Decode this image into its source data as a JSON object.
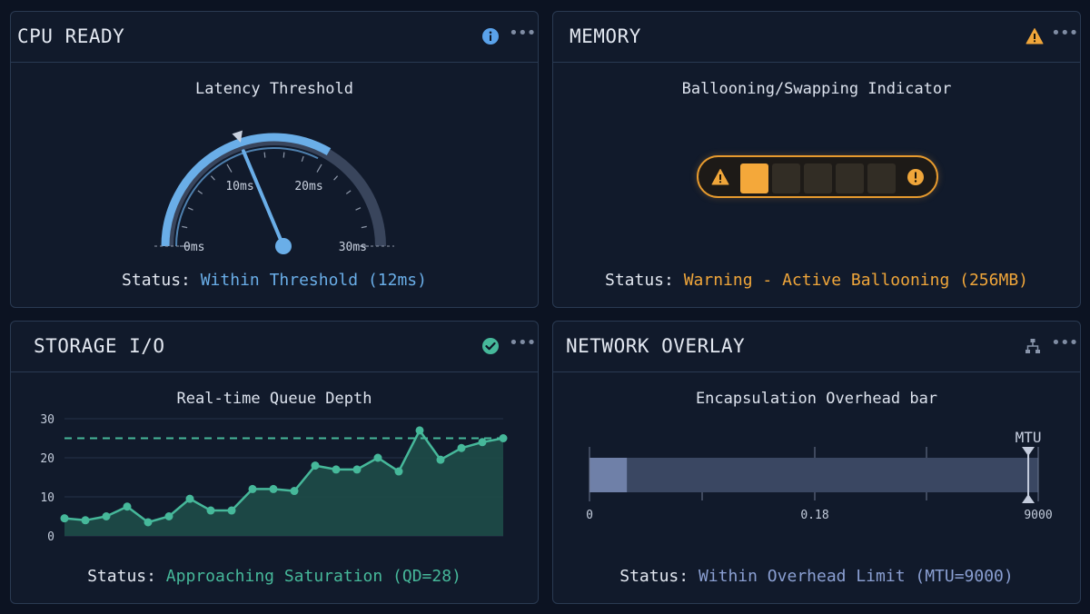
{
  "panels": {
    "cpu": {
      "title": "CPU READY",
      "icon": "info-icon",
      "subtitle": "Latency Threshold",
      "gauge": {
        "min": 0,
        "max": 30,
        "unit": "ms",
        "value": 12,
        "marker": 12,
        "warn_start": 20,
        "tick_labels": [
          "0ms",
          "10ms",
          "20ms",
          "30ms"
        ]
      },
      "status_label": "Status:",
      "status_value": "Within Threshold (12ms)",
      "accent": "#6aaee8"
    },
    "memory": {
      "title": "MEMORY",
      "icon": "warning-icon",
      "subtitle": "Ballooning/Swapping Indicator",
      "indicator": {
        "segments": 5,
        "active": 1,
        "left_icon": "warning-icon",
        "right_icon": "alert-circle-icon"
      },
      "status_label": "Status:",
      "status_value": "Warning - Active Ballooning (256MB)",
      "accent": "#f0a63a"
    },
    "storage": {
      "title": "STORAGE I/O",
      "icon": "check-circle-icon",
      "subtitle": "Real-time Queue Depth",
      "status_label": "Status:",
      "status_value": "Approaching Saturation (QD=28)",
      "accent": "#46b89a"
    },
    "network": {
      "title": "NETWORK OVERLAY",
      "icon": "network-topology-icon",
      "subtitle": "Encapsulation Overhead bar",
      "bar": {
        "mtu_label": "MTU",
        "min_label": "0",
        "mid_label": "0.18",
        "max_label": "9000",
        "max": 9000,
        "fill_value": 750,
        "mtu_marker": 8800
      },
      "status_label": "Status:",
      "status_value": "Within Overhead Limit (MTU=9000)",
      "accent": "#8a9fd2"
    }
  },
  "chart_data": {
    "type": "area",
    "title": "Real-time Queue Depth",
    "xlabel": "",
    "ylabel": "",
    "ylim": [
      0,
      30
    ],
    "yticks": [
      0,
      10,
      20,
      30
    ],
    "threshold": 25,
    "grid": true,
    "series": [
      {
        "values": [
          4.5,
          4,
          5,
          7.5,
          3.5,
          5,
          9.5,
          6.5,
          6.5,
          12,
          12,
          11.5,
          18,
          17,
          17,
          20,
          16.5,
          27,
          19.5,
          22.5,
          24,
          25
        ]
      }
    ]
  }
}
